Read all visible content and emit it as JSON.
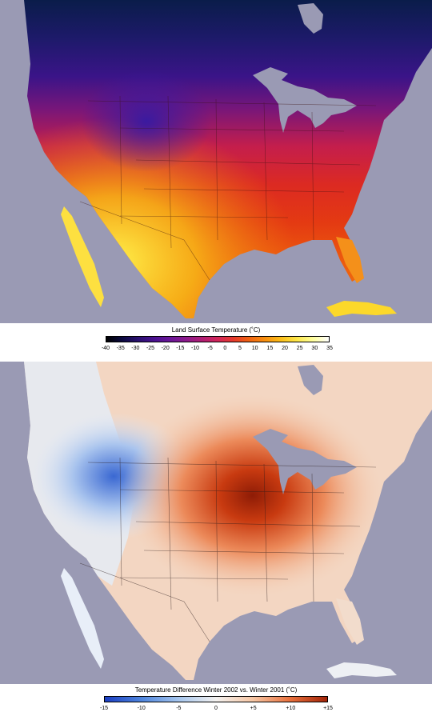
{
  "panels": [
    {
      "legend_title": "Land Surface Temperature (˚C)",
      "ticks": [
        "-40",
        "-35",
        "-30",
        "-25",
        "-20",
        "-15",
        "-10",
        "-5",
        "0",
        "5",
        "10",
        "15",
        "20",
        "25",
        "30",
        "35"
      ],
      "colors": [
        "#000000",
        "#0c0a40",
        "#2a1070",
        "#4a1190",
        "#6a1698",
        "#8c1a8c",
        "#b01e74",
        "#d2265a",
        "#e63a2c",
        "#f06412",
        "#f89010",
        "#fcbf1a",
        "#fee84a",
        "#ffff9c",
        "#ffffff"
      ]
    },
    {
      "legend_title": "Temperature Difference Winter 2002 vs. Winter 2001 (˚C)",
      "ticks": [
        "-15",
        "-10",
        "-5",
        "0",
        "+5",
        "+10",
        "+15"
      ],
      "colors": [
        "#1a3ec2",
        "#4f86de",
        "#a6c6ee",
        "#f4f2f0",
        "#f6c6a4",
        "#e8703c",
        "#a22408"
      ]
    }
  ]
}
